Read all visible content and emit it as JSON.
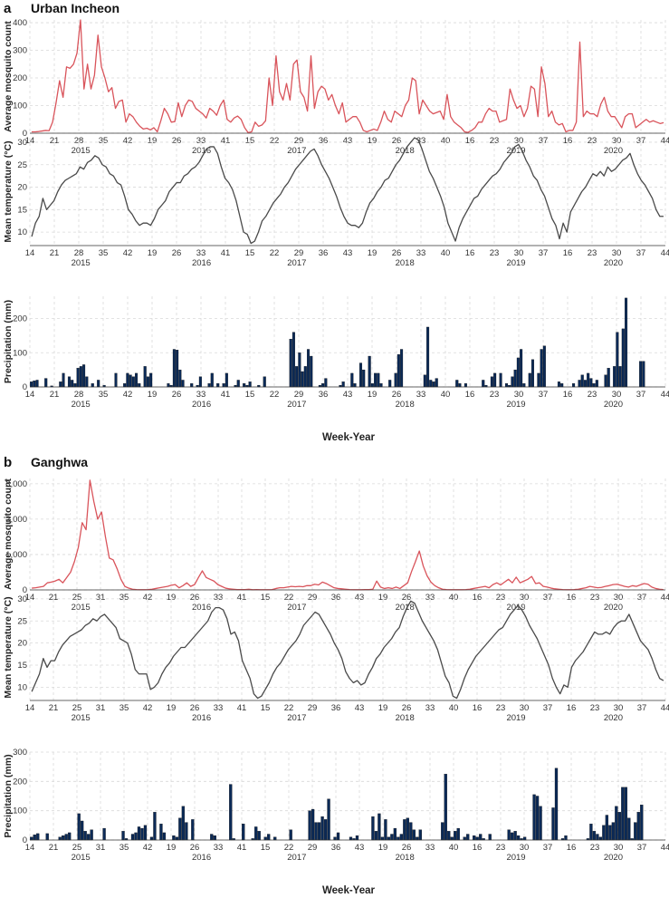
{
  "panels": [
    {
      "letter": "a",
      "title": "Urban Incheon",
      "xlabel": "Week-Year",
      "colors": {
        "mosquito": "#d9545b",
        "temperature": "#4a4a4a",
        "precipitation": "#0b2a57"
      },
      "subplots": [
        {
          "ylabel": "Average mosquito count",
          "yticks": [
            "0",
            "100",
            "200",
            "300",
            "400"
          ],
          "ylim": [
            0,
            410
          ]
        },
        {
          "ylabel": "Mean temperature (°C)",
          "yticks": [
            "10",
            "15",
            "20",
            "25",
            "30"
          ],
          "ylim": [
            7,
            31
          ]
        },
        {
          "ylabel": "Precipitation (mm)",
          "yticks": [
            "0",
            "100",
            "200"
          ],
          "ylim": [
            0,
            265
          ]
        }
      ]
    },
    {
      "letter": "b",
      "title": "Ganghwa",
      "xlabel": "Week-Year",
      "colors": {
        "mosquito": "#d9545b",
        "temperature": "#4a4a4a",
        "precipitation": "#0b2a57"
      },
      "subplots": [
        {
          "ylabel": "Average mosquito count",
          "yticks": [
            "0",
            "1,000",
            "2,000",
            "3,000"
          ],
          "ylim": [
            0,
            3150
          ]
        },
        {
          "ylabel": "Mean temperature (°C)",
          "yticks": [
            "10",
            "15",
            "20",
            "25",
            "30"
          ],
          "ylim": [
            7,
            31
          ]
        },
        {
          "ylabel": "Precipitation (mm)",
          "yticks": [
            "0",
            "100",
            "200",
            "300"
          ],
          "ylim": [
            0,
            300
          ]
        }
      ]
    }
  ],
  "chart_data": [
    {
      "type": "line",
      "panel": "a",
      "title": "Urban Incheon",
      "ylabel": "Average mosquito count",
      "xlabel": "Week-Year",
      "ylim": [
        0,
        410
      ],
      "x_tick_labels": [
        "14",
        "21",
        "28",
        "35",
        "42",
        "19",
        "26",
        "33",
        "41",
        "15",
        "22",
        "29",
        "36",
        "43",
        "19",
        "26",
        "33",
        "40",
        "16",
        "23",
        "30",
        "37",
        "16",
        "23",
        "30",
        "37",
        "44"
      ],
      "year_labels": [
        "2015",
        "2016",
        "2017",
        "2018",
        "2019",
        "2020"
      ],
      "values": [
        5,
        5,
        6,
        8,
        10,
        9,
        40,
        110,
        190,
        130,
        240,
        235,
        250,
        290,
        410,
        160,
        250,
        160,
        210,
        355,
        240,
        200,
        150,
        165,
        90,
        115,
        120,
        40,
        70,
        60,
        40,
        25,
        15,
        18,
        12,
        20,
        5,
        45,
        90,
        70,
        40,
        42,
        110,
        60,
        100,
        120,
        115,
        90,
        80,
        70,
        55,
        90,
        80,
        65,
        100,
        120,
        50,
        40,
        55,
        62,
        50,
        20,
        2,
        5,
        40,
        25,
        30,
        45,
        200,
        100,
        280,
        150,
        120,
        180,
        120,
        250,
        265,
        150,
        130,
        80,
        280,
        90,
        150,
        170,
        160,
        120,
        140,
        100,
        70,
        110,
        40,
        50,
        60,
        60,
        40,
        10,
        5,
        10,
        15,
        10,
        40,
        80,
        50,
        40,
        80,
        70,
        60,
        100,
        120,
        200,
        190,
        70,
        120,
        100,
        80,
        70,
        75,
        80,
        50,
        140,
        60,
        40,
        30,
        20,
        5,
        3,
        10,
        20,
        40,
        40,
        70,
        90,
        80,
        80,
        40,
        45,
        50,
        160,
        120,
        90,
        100,
        60,
        90,
        170,
        160,
        60,
        240,
        180,
        60,
        80,
        40,
        30,
        35,
        5,
        10,
        10,
        40,
        330,
        60,
        80,
        70,
        70,
        60,
        105,
        130,
        80,
        60,
        60,
        40,
        20,
        60,
        70,
        70,
        20,
        30,
        40,
        50,
        40,
        45,
        40,
        35,
        38
      ]
    },
    {
      "type": "line",
      "panel": "a",
      "ylabel": "Mean temperature (°C)",
      "xlabel": "Week-Year",
      "ylim": [
        7,
        31
      ],
      "values": [
        9,
        12,
        13.5,
        17.5,
        15,
        16,
        17,
        19,
        20.5,
        21.5,
        22,
        22.5,
        23,
        24.5,
        24,
        25.5,
        26,
        27,
        26.5,
        25,
        24.5,
        23,
        22.5,
        21,
        20.5,
        18,
        15,
        14,
        12.5,
        11.5,
        12,
        12,
        11.5,
        13,
        15,
        16,
        17,
        19,
        20,
        21,
        21,
        22.5,
        23,
        24,
        24.5,
        25.5,
        27,
        28.5,
        29,
        29,
        27.5,
        24.5,
        22,
        21,
        19.5,
        17,
        13.5,
        10,
        9.5,
        7.5,
        8,
        10,
        12.5,
        13.5,
        15,
        16.5,
        17.5,
        18.5,
        20,
        21,
        22.5,
        24,
        25,
        26,
        27,
        28,
        28.5,
        27,
        25,
        23.5,
        22,
        20,
        18,
        15.5,
        13.5,
        12,
        11.5,
        11.5,
        11,
        12,
        14.5,
        16.5,
        17.5,
        19,
        20,
        21.5,
        22,
        23.5,
        25,
        26,
        27.5,
        29,
        30,
        31,
        30.5,
        28.5,
        26,
        23.5,
        22,
        20,
        18,
        15.5,
        12,
        10,
        8,
        11,
        13,
        14.5,
        16,
        17.5,
        18,
        19.5,
        20.5,
        21.5,
        22.5,
        23,
        24,
        25.5,
        26.5,
        27.5,
        29,
        29.5,
        28,
        26,
        24.5,
        22.5,
        21.5,
        19.5,
        18,
        15.5,
        13,
        11.5,
        8.5,
        12,
        10,
        14.5,
        16,
        17.5,
        19,
        20,
        21.5,
        23,
        22.5,
        23.5,
        22.5,
        24.5,
        23.5,
        24,
        25,
        26,
        26.5,
        27.5,
        25,
        23,
        21.5,
        20.5,
        19,
        17.5,
        15,
        13.5,
        13.5
      ]
    },
    {
      "type": "bar",
      "panel": "a",
      "ylabel": "Precipitation (mm)",
      "xlabel": "Week-Year",
      "ylim": [
        0,
        265
      ],
      "values": [
        15,
        18,
        20,
        0,
        0,
        25,
        0,
        3,
        0,
        0,
        15,
        40,
        0,
        30,
        20,
        10,
        55,
        60,
        65,
        30,
        0,
        10,
        0,
        20,
        0,
        5,
        0,
        0,
        0,
        40,
        0,
        0,
        10,
        40,
        35,
        30,
        40,
        10,
        0,
        60,
        30,
        40,
        0,
        0,
        0,
        0,
        0,
        10,
        5,
        110,
        108,
        50,
        20,
        0,
        0,
        10,
        0,
        5,
        30,
        0,
        0,
        10,
        40,
        0,
        10,
        0,
        10,
        40,
        0,
        0,
        5,
        20,
        0,
        10,
        5,
        15,
        0,
        0,
        5,
        0,
        30,
        0,
        0,
        0,
        0,
        0,
        0,
        0,
        0,
        140,
        160,
        60,
        100,
        45,
        60,
        110,
        90,
        0,
        0,
        5,
        10,
        25,
        0,
        0,
        0,
        0,
        5,
        15,
        0,
        0,
        40,
        10,
        0,
        70,
        50,
        0,
        90,
        10,
        40,
        40,
        10,
        0,
        0,
        20,
        0,
        40,
        95,
        110,
        0,
        0,
        0,
        0,
        0,
        0,
        0,
        35,
        175,
        20,
        15,
        25,
        0,
        0,
        0,
        0,
        0,
        0,
        20,
        10,
        0,
        10,
        0,
        0,
        0,
        0,
        0,
        20,
        5,
        0,
        30,
        40,
        0,
        40,
        0,
        10,
        5,
        30,
        50,
        85,
        110,
        10,
        0,
        40,
        80,
        0,
        40,
        110,
        120,
        0,
        0,
        0,
        0,
        15,
        10,
        0,
        0,
        0,
        10,
        0,
        20,
        35,
        20,
        40,
        25,
        10,
        20,
        0,
        0,
        35,
        55,
        0,
        60,
        160,
        60,
        170,
        260,
        0,
        0,
        0,
        0,
        75,
        75,
        0,
        0,
        0,
        0,
        0,
        0,
        0
      ]
    },
    {
      "type": "line",
      "panel": "b",
      "title": "Ganghwa",
      "ylabel": "Average mosquito count",
      "xlabel": "Week-Year",
      "ylim": [
        0,
        3150
      ],
      "x_tick_labels": [
        "14",
        "21",
        "25",
        "31",
        "35",
        "42",
        "19",
        "26",
        "33",
        "41",
        "15",
        "22",
        "29",
        "36",
        "43",
        "19",
        "26",
        "33",
        "40",
        "16",
        "23",
        "30",
        "37",
        "16",
        "23",
        "30",
        "37",
        "44"
      ],
      "year_labels": [
        "2015",
        "2016",
        "2017",
        "2018",
        "2019",
        "2020"
      ],
      "values": [
        50,
        60,
        80,
        100,
        200,
        220,
        250,
        300,
        200,
        350,
        500,
        800,
        1200,
        1900,
        1700,
        3100,
        2500,
        2000,
        2200,
        1500,
        900,
        850,
        600,
        300,
        100,
        50,
        20,
        10,
        5,
        5,
        10,
        20,
        40,
        60,
        80,
        100,
        130,
        150,
        60,
        120,
        200,
        100,
        150,
        350,
        540,
        350,
        300,
        250,
        150,
        100,
        50,
        30,
        20,
        10,
        10,
        10,
        20,
        5,
        10,
        5,
        5,
        5,
        10,
        40,
        60,
        60,
        80,
        100,
        90,
        100,
        90,
        120,
        120,
        160,
        140,
        220,
        180,
        120,
        60,
        40,
        30,
        20,
        10,
        5,
        5,
        5,
        10,
        10,
        20,
        250,
        80,
        40,
        60,
        40,
        80,
        40,
        120,
        200,
        520,
        800,
        1100,
        680,
        400,
        220,
        120,
        60,
        20,
        10,
        5,
        5,
        5,
        5,
        10,
        20,
        40,
        60,
        80,
        100,
        60,
        150,
        200,
        140,
        220,
        300,
        200,
        360,
        200,
        250,
        300,
        380,
        180,
        200,
        100,
        80,
        50,
        30,
        20,
        10,
        5,
        5,
        10,
        20,
        40,
        60,
        100,
        80,
        60,
        70,
        100,
        120,
        150,
        160,
        130,
        100,
        80,
        120,
        100,
        140,
        180,
        160,
        80,
        40,
        20,
        10
      ]
    },
    {
      "type": "line",
      "panel": "b",
      "ylabel": "Mean temperature (°C)",
      "xlabel": "Week-Year",
      "ylim": [
        7,
        31
      ],
      "values": [
        9,
        11,
        13,
        16.5,
        14.5,
        16,
        16,
        18,
        19.5,
        20.5,
        21.5,
        22,
        22.5,
        23,
        24,
        24.5,
        25.5,
        25,
        26,
        26.5,
        25.5,
        24.5,
        23.5,
        21,
        20.5,
        20,
        17.5,
        14,
        13,
        13,
        13,
        9.5,
        10,
        11,
        13,
        14.5,
        15.5,
        17,
        18,
        19,
        19,
        20,
        21,
        22,
        23,
        24,
        25,
        27,
        28,
        28,
        27.5,
        25.5,
        22,
        22.5,
        20.5,
        16,
        14,
        12,
        8.5,
        7.5,
        8,
        9.5,
        11,
        13,
        14.5,
        15.5,
        17,
        18.5,
        19.5,
        20.5,
        22,
        24,
        25,
        26,
        27,
        26.5,
        25,
        23.5,
        22,
        20,
        18.5,
        16.5,
        13.5,
        12,
        11,
        11.5,
        10.5,
        11,
        13,
        14.5,
        16.5,
        17.5,
        19,
        20,
        21,
        22.5,
        23.5,
        26,
        28,
        29.5,
        29,
        27,
        25,
        23.5,
        22,
        20.5,
        18.5,
        15.5,
        12.5,
        11,
        8,
        7.5,
        9.5,
        12,
        14,
        15.5,
        17,
        18,
        19,
        20,
        21,
        22,
        23,
        23.5,
        25,
        26.5,
        27.5,
        28.5,
        27.5,
        26,
        24,
        22.5,
        21,
        19,
        17,
        15,
        12,
        10,
        8.5,
        10.5,
        10,
        14.5,
        16,
        17,
        18,
        19.5,
        21,
        22.5,
        22,
        22,
        22.5,
        22,
        23.5,
        24.5,
        25,
        25,
        26.5,
        24.5,
        22.5,
        20.5,
        19.5,
        18.5,
        16.5,
        14,
        12,
        11.5
      ]
    },
    {
      "type": "bar",
      "panel": "b",
      "ylabel": "Precipitation (mm)",
      "xlabel": "Week-Year",
      "ylim": [
        0,
        300
      ],
      "values": [
        10,
        18,
        22,
        0,
        0,
        22,
        0,
        0,
        0,
        10,
        15,
        20,
        25,
        0,
        0,
        90,
        65,
        30,
        20,
        35,
        0,
        0,
        0,
        40,
        0,
        0,
        0,
        0,
        0,
        30,
        5,
        0,
        20,
        25,
        45,
        40,
        50,
        0,
        10,
        95,
        0,
        55,
        25,
        0,
        0,
        15,
        10,
        75,
        115,
        60,
        0,
        70,
        0,
        0,
        0,
        0,
        0,
        20,
        15,
        0,
        0,
        0,
        0,
        190,
        5,
        0,
        0,
        55,
        0,
        0,
        5,
        45,
        30,
        0,
        10,
        20,
        0,
        10,
        0,
        0,
        0,
        0,
        35,
        0,
        0,
        0,
        0,
        0,
        100,
        105,
        60,
        60,
        80,
        70,
        140,
        0,
        10,
        25,
        0,
        0,
        0,
        10,
        5,
        15,
        0,
        0,
        0,
        0,
        80,
        30,
        90,
        10,
        70,
        10,
        20,
        40,
        10,
        20,
        70,
        75,
        60,
        35,
        10,
        35,
        0,
        0,
        0,
        0,
        0,
        0,
        60,
        225,
        30,
        10,
        30,
        40,
        0,
        10,
        20,
        0,
        15,
        10,
        20,
        5,
        0,
        20,
        0,
        0,
        0,
        0,
        0,
        35,
        25,
        30,
        15,
        5,
        10,
        0,
        0,
        155,
        150,
        115,
        0,
        0,
        0,
        110,
        245,
        0,
        5,
        15,
        0,
        0,
        0,
        0,
        0,
        0,
        5,
        55,
        30,
        20,
        10,
        50,
        85,
        50,
        60,
        115,
        95,
        180,
        180,
        75,
        5,
        60,
        95,
        120,
        0,
        0,
        0,
        0,
        0,
        0,
        0
      ]
    }
  ]
}
